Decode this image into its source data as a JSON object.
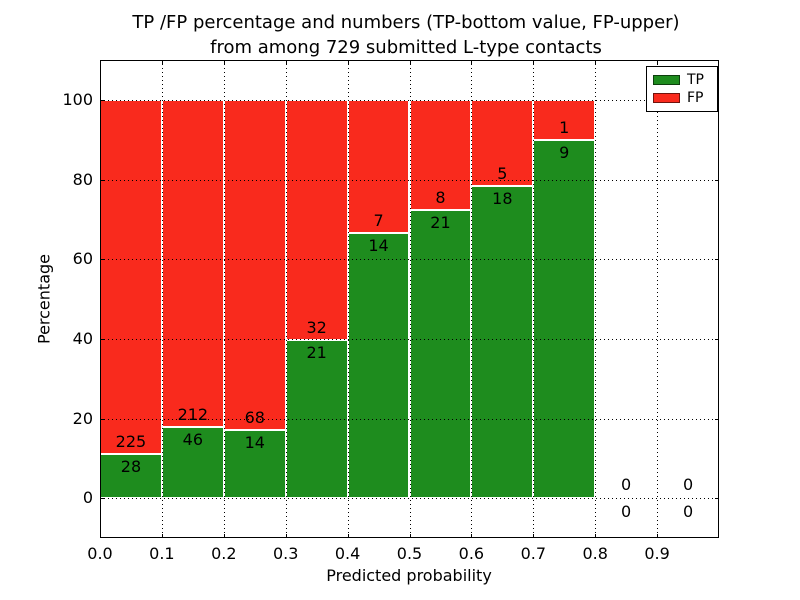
{
  "title": {
    "line1": "TP /FP percentage and numbers (TP-bottom value, FP-upper)",
    "line2": "from among 729 submitted L-type contacts"
  },
  "axes": {
    "xlabel": "Predicted probability",
    "ylabel": "Percentage",
    "x_ticks": [
      "0.0",
      "0.1",
      "0.2",
      "0.3",
      "0.4",
      "0.5",
      "0.6",
      "0.7",
      "0.8",
      "0.9"
    ],
    "y_ticks": [
      "0",
      "20",
      "40",
      "60",
      "80",
      "100"
    ]
  },
  "legend": {
    "items": [
      {
        "label": "TP",
        "color": "#1e8c1e"
      },
      {
        "label": "FP",
        "color": "#f92a1d"
      }
    ]
  },
  "chart_data": {
    "type": "bar",
    "stacked": true,
    "normalized": "each bin scaled to 100%",
    "title": "TP /FP percentage and numbers (TP-bottom value, FP-upper) from among 729 submitted L-type contacts",
    "xlabel": "Predicted probability",
    "ylabel": "Percentage",
    "xlim": [
      0.0,
      1.0
    ],
    "ylim": [
      -10,
      110
    ],
    "grid": "dotted, both axes, drawn over bars",
    "legend_position": "upper right",
    "total_contacts": 729,
    "colors": {
      "tp": "#1e8c1e",
      "fp": "#f92a1d",
      "bar_edge": "#ffffff"
    },
    "categories": [
      "0.0-0.1",
      "0.1-0.2",
      "0.2-0.3",
      "0.3-0.4",
      "0.4-0.5",
      "0.5-0.6",
      "0.6-0.7",
      "0.7-0.8",
      "0.8-0.9",
      "0.9-1.0"
    ],
    "series": [
      {
        "name": "TP",
        "counts": [
          28,
          46,
          14,
          21,
          14,
          21,
          18,
          9,
          0,
          0
        ]
      },
      {
        "name": "FP",
        "counts": [
          225,
          212,
          68,
          32,
          7,
          8,
          5,
          1,
          0,
          0
        ]
      }
    ],
    "bins": [
      {
        "x0": 0.0,
        "x1": 0.1,
        "tp": 28,
        "fp": 225,
        "tp_pct": 11.07
      },
      {
        "x0": 0.1,
        "x1": 0.2,
        "tp": 46,
        "fp": 212,
        "tp_pct": 17.83
      },
      {
        "x0": 0.2,
        "x1": 0.3,
        "tp": 14,
        "fp": 68,
        "tp_pct": 17.07
      },
      {
        "x0": 0.3,
        "x1": 0.4,
        "tp": 21,
        "fp": 32,
        "tp_pct": 39.62
      },
      {
        "x0": 0.4,
        "x1": 0.5,
        "tp": 14,
        "fp": 7,
        "tp_pct": 66.67
      },
      {
        "x0": 0.5,
        "x1": 0.6,
        "tp": 21,
        "fp": 8,
        "tp_pct": 72.41
      },
      {
        "x0": 0.6,
        "x1": 0.7,
        "tp": 18,
        "fp": 5,
        "tp_pct": 78.26
      },
      {
        "x0": 0.7,
        "x1": 0.8,
        "tp": 9,
        "fp": 1,
        "tp_pct": 90.0
      },
      {
        "x0": 0.8,
        "x1": 0.9,
        "tp": 0,
        "fp": 0,
        "tp_pct": null
      },
      {
        "x0": 0.9,
        "x1": 1.0,
        "tp": 0,
        "fp": 0,
        "tp_pct": null
      }
    ]
  }
}
